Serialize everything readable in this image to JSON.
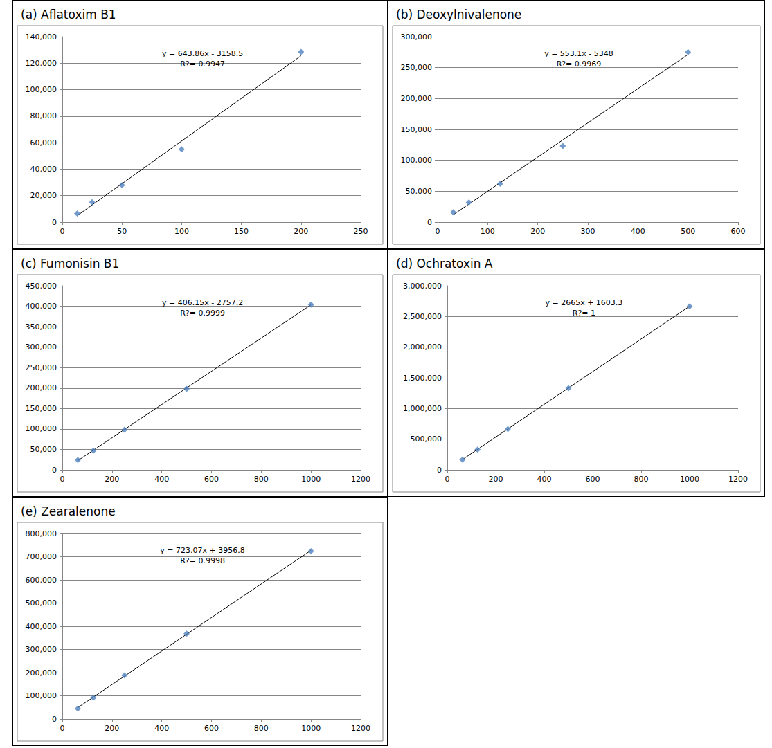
{
  "chart_data": [
    {
      "type": "scatter",
      "title": "(a) Aflatoxim B1",
      "annotations": [
        "y = 643.86x - 3158.5",
        "R?= 0.9947"
      ],
      "x": [
        12.5,
        25,
        50,
        100,
        200
      ],
      "series": [
        {
          "type": "scatter",
          "color": "#4f81bd",
          "marker": "diamond",
          "values": [
            6500,
            15000,
            28000,
            55000,
            128500
          ]
        }
      ],
      "trendline": {
        "x": [
          12.5,
          200
        ],
        "y": [
          4889.75,
          125613.5
        ],
        "color": "#000000",
        "line_style": "solid"
      },
      "xlim": [
        0,
        250
      ],
      "xticks": [
        0,
        50,
        100,
        150,
        200,
        250
      ],
      "ylim": [
        0,
        140000
      ],
      "yticks": [
        0,
        {
          "value": 20000,
          "label": "20,000"
        },
        {
          "value": 40000,
          "label": "40,000"
        },
        {
          "value": 60000,
          "label": "60,000"
        },
        {
          "value": 80000,
          "label": "80,000"
        },
        {
          "value": 100000,
          "label": "100,000"
        },
        {
          "value": 120000,
          "label": "120,000"
        },
        {
          "value": 140000,
          "label": "140,000"
        }
      ],
      "grid": true
    },
    {
      "type": "scatter",
      "title": "(b) Deoxylnivalenone",
      "annotations": [
        "y = 553.1x - 5348",
        "R?= 0.9969"
      ],
      "x": [
        31.25,
        62.5,
        125,
        250,
        500
      ],
      "series": [
        {
          "type": "scatter",
          "color": "#4f81bd",
          "marker": "diamond",
          "values": [
            16000,
            32000,
            62000,
            123000,
            275000
          ]
        }
      ],
      "trendline": {
        "x": [
          31.25,
          500
        ],
        "y": [
          11936.4,
          271202
        ],
        "color": "#000000",
        "line_style": "solid"
      },
      "xlim": [
        0,
        600
      ],
      "xticks": [
        0,
        100,
        200,
        300,
        400,
        500,
        600
      ],
      "ylim": [
        0,
        300000
      ],
      "yticks": [
        0,
        {
          "value": 50000,
          "label": "50,000"
        },
        {
          "value": 100000,
          "label": "100,000"
        },
        {
          "value": 150000,
          "label": "150,000"
        },
        {
          "value": 200000,
          "label": "200,000"
        },
        {
          "value": 250000,
          "label": "250,000"
        },
        {
          "value": 300000,
          "label": "300,000"
        }
      ],
      "grid": true
    },
    {
      "type": "scatter",
      "title": "(c) Fumonisin B1",
      "annotations": [
        "y = 406.15x - 2757.2",
        "R?= 0.9999"
      ],
      "x": [
        62.5,
        125,
        250,
        500,
        1000
      ],
      "series": [
        {
          "type": "scatter",
          "color": "#4f81bd",
          "marker": "diamond",
          "values": [
            24000,
            47000,
            98000,
            198000,
            404000
          ]
        }
      ],
      "trendline": {
        "x": [
          62.5,
          1000
        ],
        "y": [
          22627.2,
          403392.8
        ],
        "color": "#000000",
        "line_style": "solid"
      },
      "xlim": [
        0,
        1200
      ],
      "xticks": [
        0,
        200,
        400,
        600,
        800,
        1000,
        1200
      ],
      "ylim": [
        0,
        450000
      ],
      "yticks": [
        0,
        {
          "value": 50000,
          "label": "50,000"
        },
        {
          "value": 100000,
          "label": "100,000"
        },
        {
          "value": 150000,
          "label": "150,000"
        },
        {
          "value": 200000,
          "label": "200,000"
        },
        {
          "value": 250000,
          "label": "250,000"
        },
        {
          "value": 300000,
          "label": "300,000"
        },
        {
          "value": 350000,
          "label": "350,000"
        },
        {
          "value": 400000,
          "label": "400,000"
        },
        {
          "value": 450000,
          "label": "450,000"
        }
      ],
      "grid": true
    },
    {
      "type": "scatter",
      "title": "(d) Ochratoxin A",
      "annotations": [
        "y = 2665x + 1603.3",
        "R?= 1"
      ],
      "x": [
        62.5,
        125,
        250,
        500,
        1000
      ],
      "series": [
        {
          "type": "scatter",
          "color": "#4f81bd",
          "marker": "diamond",
          "values": [
            165000,
            330000,
            665000,
            1330000,
            2665000
          ]
        }
      ],
      "trendline": {
        "x": [
          62.5,
          1000
        ],
        "y": [
          168165.8,
          2666603.3
        ],
        "color": "#000000",
        "line_style": "solid"
      },
      "xlim": [
        0,
        1200
      ],
      "xticks": [
        0,
        200,
        400,
        600,
        800,
        1000,
        1200
      ],
      "ylim": [
        0,
        3000000
      ],
      "yticks": [
        0,
        {
          "value": 500000,
          "label": "500,000"
        },
        {
          "value": 1000000,
          "label": "1,000,000"
        },
        {
          "value": 1500000,
          "label": "1,500,000"
        },
        {
          "value": 2000000,
          "label": "2,000,000"
        },
        {
          "value": 2500000,
          "label": "2,500,000"
        },
        {
          "value": 3000000,
          "label": "3,000,000"
        }
      ],
      "grid": true
    },
    {
      "type": "scatter",
      "title": "(e) Zearalenone",
      "annotations": [
        "y = 723.07x + 3956.8",
        "R?= 0.9998"
      ],
      "x": [
        62.5,
        125,
        250,
        500,
        1000
      ],
      "series": [
        {
          "type": "scatter",
          "color": "#4f81bd",
          "marker": "diamond",
          "values": [
            45000,
            92000,
            188000,
            368000,
            724000
          ]
        }
      ],
      "trendline": {
        "x": [
          62.5,
          1000
        ],
        "y": [
          49148.7,
          727026.8
        ],
        "color": "#000000",
        "line_style": "solid"
      },
      "xlim": [
        0,
        1200
      ],
      "xticks": [
        0,
        200,
        400,
        600,
        800,
        1000,
        1200
      ],
      "ylim": [
        0,
        800000
      ],
      "yticks": [
        0,
        {
          "value": 100000,
          "label": "100,000"
        },
        {
          "value": 200000,
          "label": "200,000"
        },
        {
          "value": 300000,
          "label": "300,000"
        },
        {
          "value": 400000,
          "label": "400,000"
        },
        {
          "value": 500000,
          "label": "500,000"
        },
        {
          "value": 600000,
          "label": "600,000"
        },
        {
          "value": 700000,
          "label": "700,000"
        },
        {
          "value": 800000,
          "label": "800,000"
        }
      ],
      "grid": true
    }
  ]
}
